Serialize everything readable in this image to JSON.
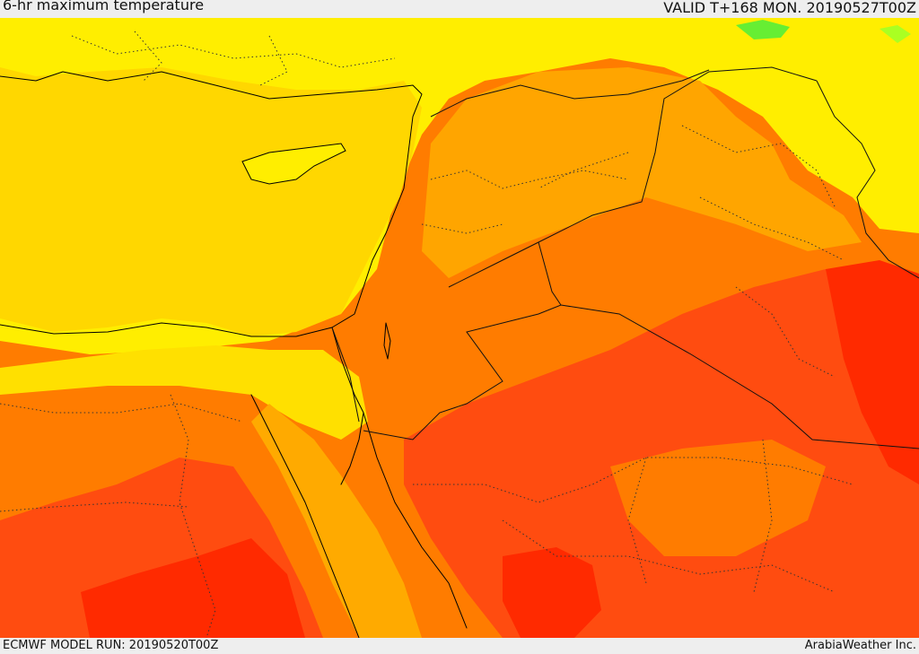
{
  "header": {
    "title": "6-hr maximum temperature",
    "valid": "VALID T+168 MON. 20190527T00Z"
  },
  "footer": {
    "model_run": "ECMWF MODEL RUN: 20190520T00Z",
    "credit": "ArabiaWeather Inc."
  },
  "map": {
    "field": "6-hr maximum temperature",
    "palette": {
      "sea": "#ffd700",
      "warm_yellow": "#ffee00",
      "hot_orange": "#ffa500",
      "very_hot": "#ff7c00",
      "extreme": "#ff4c10",
      "peak": "#ff2a00",
      "cool_green": "#66ee33"
    },
    "coastline_color": "#000000",
    "border_style": "dotted"
  }
}
